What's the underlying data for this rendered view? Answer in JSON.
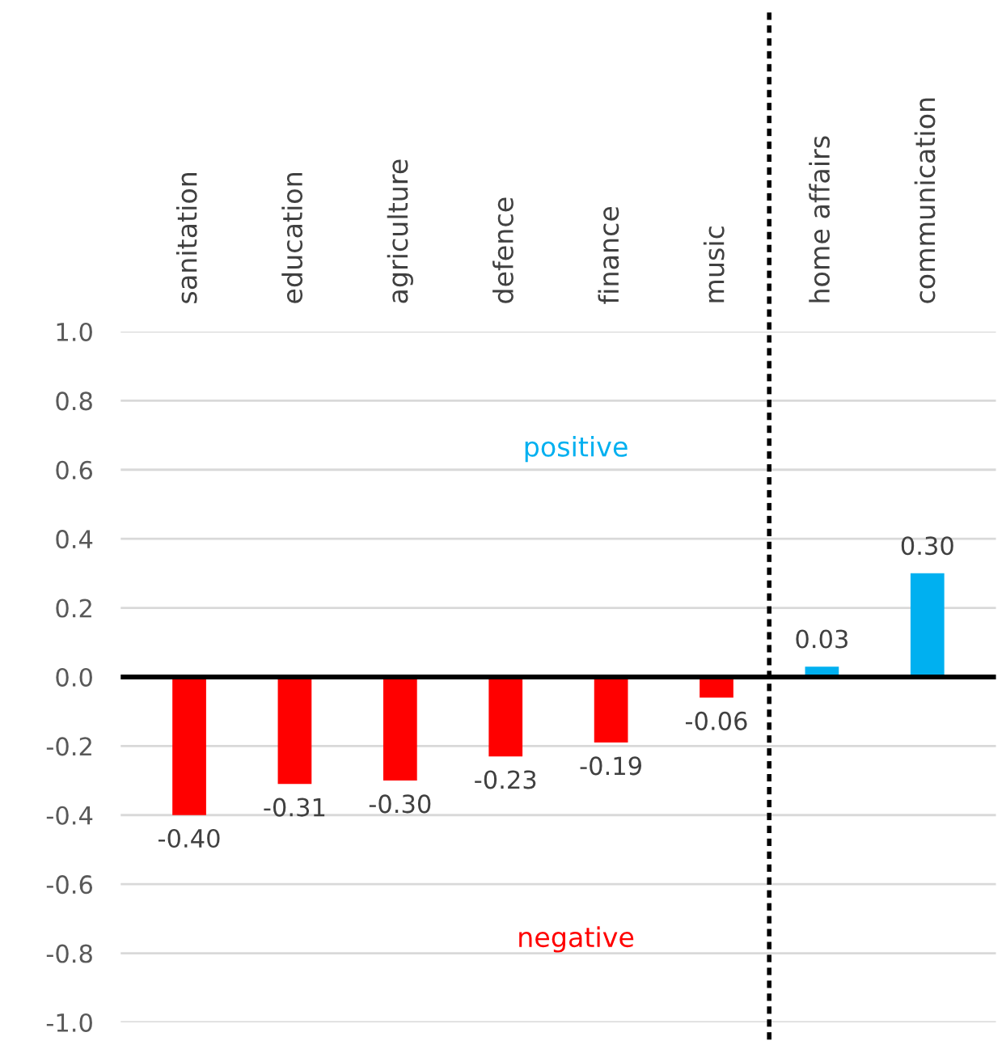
{
  "chart_data": {
    "type": "bar",
    "categories": [
      "sanitation",
      "education",
      "agriculture",
      "defence",
      "finance",
      "music",
      "home affairs",
      "communication"
    ],
    "values": [
      -0.4,
      -0.31,
      -0.3,
      -0.23,
      -0.19,
      -0.06,
      0.03,
      0.3
    ],
    "colors": [
      "#ff0000",
      "#ff0000",
      "#ff0000",
      "#ff0000",
      "#ff0000",
      "#ff0000",
      "#00b0f0",
      "#00b0f0"
    ],
    "value_labels": [
      "-0.40",
      "-0.31",
      "-0.30",
      "-0.23",
      "-0.19",
      "-0.06",
      "0.03",
      "0.30"
    ],
    "ylim": [
      -1,
      1
    ],
    "yticks": [
      {
        "value": -1,
        "label": "-1.0"
      },
      {
        "value": -0.8,
        "label": "-0.8"
      },
      {
        "value": -0.6,
        "label": "-0.6"
      },
      {
        "value": -0.4,
        "label": "-0.4"
      },
      {
        "value": -0.2,
        "label": "-0.2"
      },
      {
        "value": 0,
        "label": "0.0"
      },
      {
        "value": 0.2,
        "label": "0.2"
      },
      {
        "value": 0.4,
        "label": "0.4"
      },
      {
        "value": 0.6,
        "label": "0.6"
      },
      {
        "value": 0.8,
        "label": "0.8"
      },
      {
        "value": 1,
        "label": "1.0"
      }
    ],
    "grid": "y",
    "annotations": [
      "positive",
      "negative"
    ]
  }
}
